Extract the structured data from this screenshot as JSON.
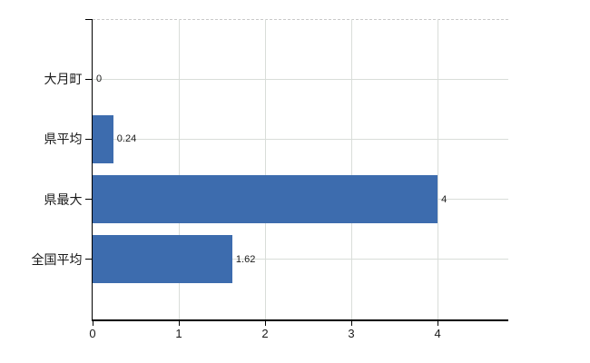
{
  "chart_data": {
    "type": "bar",
    "orientation": "horizontal",
    "title": "",
    "xlabel": "",
    "ylabel": "",
    "categories": [
      "大月町",
      "県平均",
      "県最大",
      "全国平均"
    ],
    "values": [
      0,
      0.24,
      4,
      1.62
    ],
    "value_labels": [
      "0",
      "0.24",
      "4",
      "1.62"
    ],
    "xlim": [
      0,
      4.82
    ],
    "xticks": [
      0,
      1,
      2,
      3,
      4
    ],
    "xtick_labels": [
      "0",
      "1",
      "2",
      "3",
      "4"
    ],
    "grid": true,
    "legend": "none",
    "colors": {
      "bar": "#3d6cae",
      "axis": "#000000",
      "gridline": "#d9ddd9",
      "top_border": "#c9c9c9",
      "text": "#1a1a1a",
      "background": "#ffffff"
    }
  }
}
